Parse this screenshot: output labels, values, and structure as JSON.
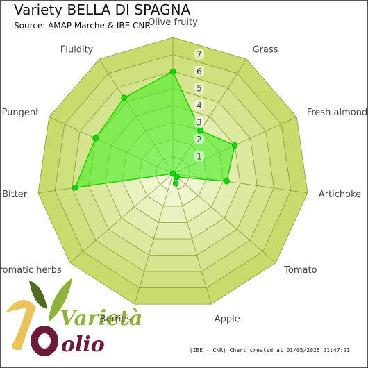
{
  "header": {
    "title": "Variety BELLA DI SPAGNA",
    "subtitle": "Source: AMAP Marche & IBE CNR"
  },
  "footer": {
    "credit": "(IBE - CNR) Chart created at 01/05/2025 21:47:21"
  },
  "logo": {
    "word1": "Varietà",
    "word2": "olio",
    "colors": {
      "green_dark": "#4e6b1f",
      "green_light": "#8fb33a",
      "gold": "#e8c45a",
      "plum": "#6b1a3a"
    }
  },
  "colors": {
    "ring_outer": "#c8dc6e",
    "ring_inner": "#f6fadf",
    "grid": "#8a9a3a",
    "series_fill": "#44ee22",
    "series_stroke": "#22cc00",
    "marker": "#00dd00"
  },
  "chart_data": {
    "type": "radar",
    "title": "Variety BELLA DI SPAGNA",
    "subtitle": "Source: AMAP Marche & IBE CNR",
    "axes": [
      "Olive fruity",
      "Grass",
      "Fresh almond",
      "Artichoke",
      "Tomato",
      "Apple",
      "Berries",
      "Aromatic herbs",
      "Bitter",
      "Pungent",
      "Fluidity"
    ],
    "rlim": [
      0,
      8
    ],
    "ticks": [
      1,
      2,
      3,
      4,
      5,
      6,
      7
    ],
    "grid": true,
    "series": [
      {
        "values": [
          6,
          3,
          4,
          3.2,
          0.3,
          0.6,
          0,
          0,
          5.8,
          5,
          5.3
        ]
      }
    ]
  }
}
